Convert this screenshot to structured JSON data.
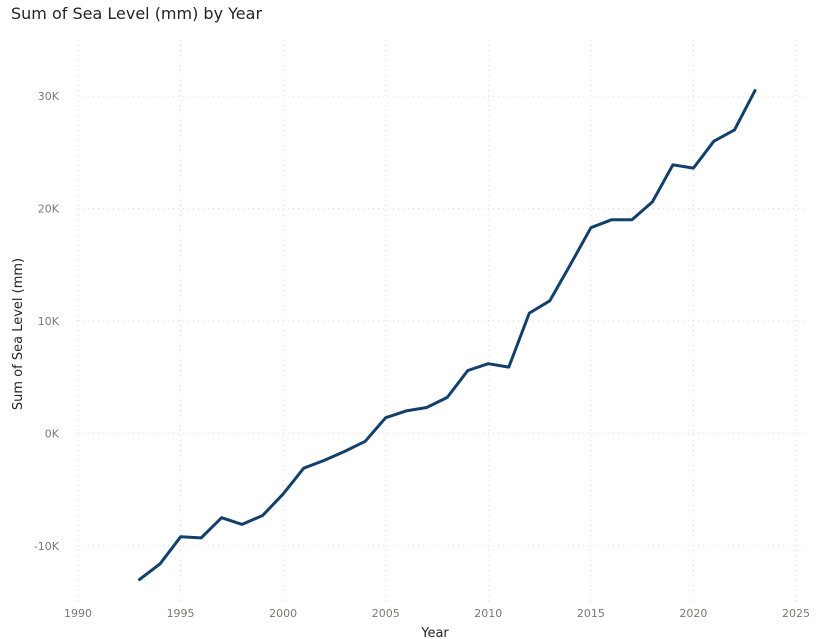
{
  "title": "Sum of Sea Level (mm) by Year",
  "colors": {
    "series": "#13406b"
  },
  "chart_data": {
    "type": "line",
    "title": "Sum of Sea Level (mm) by Year",
    "xlabel": "Year",
    "ylabel": "Sum of Sea Level (mm)",
    "xlim": [
      1990,
      2025
    ],
    "ylim": [
      -15000,
      35000
    ],
    "x_ticks": [
      1990,
      1995,
      2000,
      2005,
      2010,
      2015,
      2020,
      2025
    ],
    "x_tick_labels": [
      "1990",
      "1995",
      "2000",
      "2005",
      "2010",
      "2015",
      "2020",
      "2025"
    ],
    "y_ticks": [
      -10000,
      0,
      10000,
      20000,
      30000
    ],
    "y_tick_labels": [
      "-10K",
      "0K",
      "10K",
      "20K",
      "30K"
    ],
    "grid": true,
    "legend": "none",
    "series": [
      {
        "x": [
          1993,
          1994,
          1995,
          1996,
          1997,
          1998,
          1999,
          2000,
          2001,
          2002,
          2003,
          2004,
          2005,
          2006,
          2007,
          2008,
          2009,
          2010,
          2011,
          2012,
          2013,
          2014,
          2015,
          2016,
          2017,
          2018,
          2019,
          2020,
          2021,
          2022,
          2023
        ],
        "values": [
          -13000,
          -11600,
          -9200,
          -9300,
          -7500,
          -8100,
          -7300,
          -5400,
          -3100,
          -2400,
          -1600,
          -700,
          1400,
          2000,
          2300,
          3200,
          5600,
          6200,
          5900,
          10700,
          11800,
          15000,
          18300,
          19000,
          19000,
          20600,
          23900,
          23600,
          26000,
          27000,
          30500
        ]
      }
    ]
  }
}
